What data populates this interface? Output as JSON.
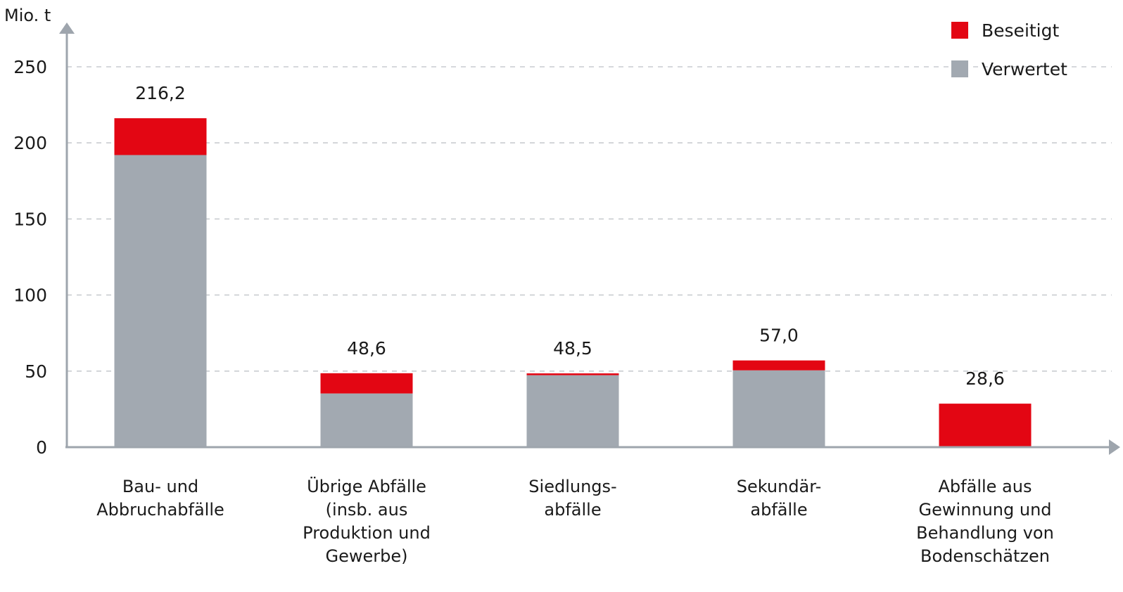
{
  "chart_data": {
    "type": "bar",
    "stacked": true,
    "unit_label": "Mio. t",
    "categories": [
      [
        "Bau- und",
        "Abbruchabfälle"
      ],
      [
        "Übrige Abfälle",
        "(insb. aus",
        "Produktion und",
        "Gewerbe)"
      ],
      [
        "Siedlungs-",
        "abfälle"
      ],
      [
        "Sekundär-",
        "abfälle"
      ],
      [
        "Abfälle aus",
        "Gewinnung und",
        "Behandlung von",
        "Bodenschätzen"
      ]
    ],
    "series": [
      {
        "name": "Verwertet",
        "color": "#a2a9b1",
        "values": [
          192.0,
          35.3,
          47.3,
          50.5,
          0.0
        ]
      },
      {
        "name": "Beseitigt",
        "color": "#e30613",
        "values": [
          24.2,
          13.3,
          1.2,
          6.5,
          28.6
        ]
      }
    ],
    "totals": [
      "216,2",
      "48,6",
      "48,5",
      "57,0",
      "28,6"
    ],
    "ylim": [
      0,
      250
    ],
    "yticks": [
      0,
      50,
      100,
      150,
      200,
      250
    ],
    "grid": true,
    "legend_order": [
      "Beseitigt",
      "Verwertet"
    ],
    "legend_position": "top-right"
  }
}
